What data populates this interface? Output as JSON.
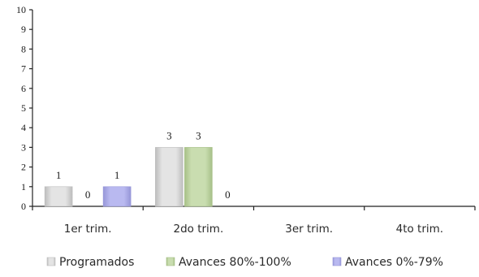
{
  "chart_data": {
    "type": "bar",
    "categories": [
      "1er trim.",
      "2do trim.",
      "3er trim.",
      "4to trim."
    ],
    "series": [
      {
        "name": "Programados",
        "values": [
          1,
          3,
          0,
          0
        ],
        "color": "#e4e4e4",
        "shade": "#bdbdbd",
        "labels": [
          "1",
          "3",
          "",
          ""
        ]
      },
      {
        "name": "Avances 80%-100%",
        "values": [
          0,
          3,
          0,
          0
        ],
        "color": "#c9ddb0",
        "shade": "#a7c088",
        "labels": [
          "0",
          "3",
          "",
          ""
        ]
      },
      {
        "name": "Avances 0%-79%",
        "values": [
          1,
          0,
          0,
          0
        ],
        "color": "#b9b9f0",
        "shade": "#9696d8",
        "labels": [
          "1",
          "0",
          "",
          ""
        ]
      }
    ],
    "ylim": [
      0,
      10
    ],
    "yticks": [
      "0",
      "1",
      "2",
      "3",
      "4",
      "5",
      "6",
      "7",
      "8",
      "9",
      "10"
    ],
    "title": "",
    "xlabel": "",
    "ylabel": "",
    "grid": false,
    "legend_position": "bottom"
  }
}
